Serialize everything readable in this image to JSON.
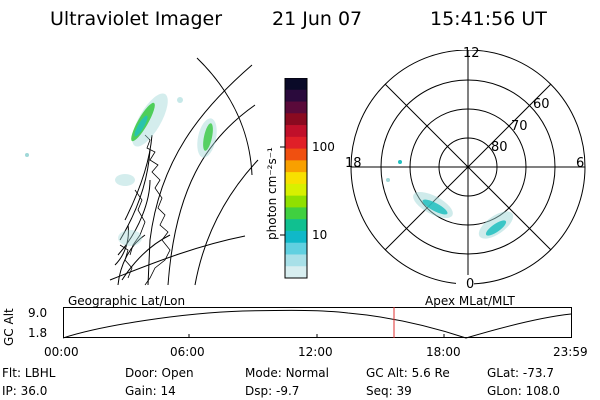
{
  "header": {
    "instrument": "Ultraviolet Imager",
    "date": "21 Jun 07",
    "time": "15:41:56 UT"
  },
  "colorbar": {
    "label": "photon cm⁻²s⁻¹",
    "ticks": [
      "100",
      "10"
    ],
    "colors": [
      "#0a0a28",
      "#2a0a3c",
      "#5a0a3a",
      "#8a0a20",
      "#c0102a",
      "#e02028",
      "#f05010",
      "#f8a000",
      "#f8e000",
      "#d8f000",
      "#90e000",
      "#40d040",
      "#10c090",
      "#10b8c8",
      "#60d0e0",
      "#a8e0e8",
      "#d8eef0"
    ]
  },
  "globe": {
    "aurora_colors": {
      "green": "#36c840",
      "cyan": "#20c0c0",
      "pale": "#a0d8d8"
    }
  },
  "polar": {
    "mlt_labels": [
      "12",
      "18",
      "6",
      "0"
    ],
    "lat_labels": [
      "60",
      "70",
      "80"
    ]
  },
  "altitude_panel": {
    "ylabel": "GC Alt",
    "ytick_top": "9.0",
    "ytick_bottom": "1.8",
    "left_title": "Geographic Lat/Lon",
    "right_title": "Apex MLat/MLT",
    "xticks": [
      "00:00",
      "06:00",
      "12:00",
      "18:00",
      "23:59"
    ],
    "current_marker_color": "#e03030"
  },
  "info": {
    "row1": [
      {
        "label": "Flt:",
        "value": "LBHL"
      },
      {
        "label": "Door:",
        "value": "Open"
      },
      {
        "label": "Mode:",
        "value": "Normal"
      },
      {
        "label": "GC Alt:",
        "value": "5.6 Re"
      },
      {
        "label": "GLat:",
        "value": "-73.7"
      }
    ],
    "row2": [
      {
        "label": "IP:",
        "value": "36.0"
      },
      {
        "label": "Gain:",
        "value": "14"
      },
      {
        "label": "Dsp:",
        "value": "-9.7"
      },
      {
        "label": "Seq:",
        "value": "39"
      },
      {
        "label": "GLon:",
        "value": "108.0"
      }
    ]
  }
}
